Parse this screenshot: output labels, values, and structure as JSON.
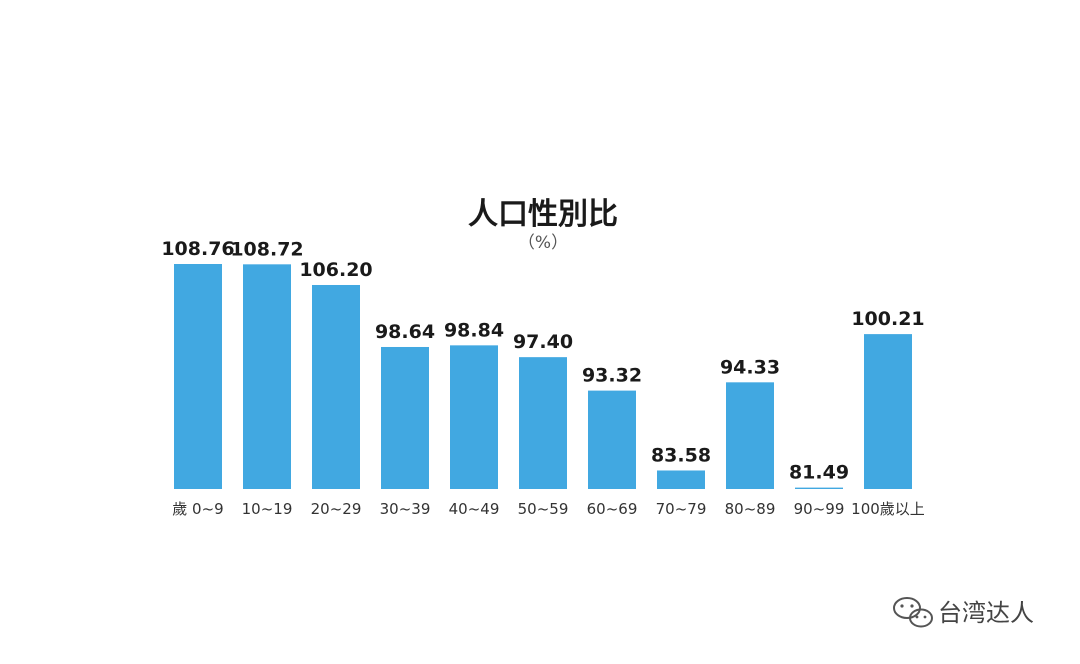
{
  "chart_data": {
    "type": "bar",
    "title": "人口性別比",
    "subtitle": "（%）",
    "categories": [
      "歲 0~9",
      "10~19",
      "20~29",
      "30~39",
      "40~49",
      "50~59",
      "60~69",
      "70~79",
      "80~89",
      "90~99",
      "100歲以上"
    ],
    "values": [
      108.76,
      108.72,
      106.2,
      98.64,
      98.84,
      97.4,
      93.32,
      83.58,
      94.33,
      81.49,
      100.21
    ],
    "value_labels": [
      "108.76",
      "108.72",
      "106.20",
      "98.64",
      "98.84",
      "97.40",
      "93.32",
      "83.58",
      "94.33",
      "81.49",
      "100.21"
    ],
    "xlabel": "",
    "ylabel": "",
    "grid": false,
    "bar_color": "#41a8e1"
  },
  "watermark": {
    "text": "台湾达人",
    "icon": "wechat-icon"
  }
}
